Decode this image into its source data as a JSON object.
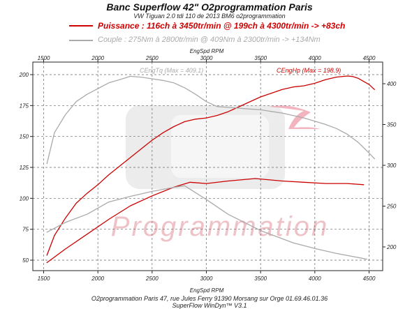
{
  "title": "Banc Superflow 42\" O2programmation Paris",
  "subtitle": "VW Tiguan 2.0 tdi 110 de 2013 BM6 o2programmation",
  "legend": {
    "power": "Puissance : 116ch à 3450tr/min @ 199ch à 4300tr/min  -> +83ch",
    "torque": "Couple : 275Nm à 2800tr/min @ 409Nm à 2300tr/min -> +134Nm"
  },
  "footer": {
    "line1": "O2programmation Paris 47, rue Jules Ferry 91390 Morsang sur Orge 01.69.46.01.36",
    "line2": "SuperFlow WinDyn™ V3.1"
  },
  "watermark": "Programmation",
  "colors": {
    "power": "#cc0000",
    "torque": "#aaaaaa",
    "grid": "#666666"
  },
  "chart_data": {
    "type": "line",
    "xlabel": "EngSpd RPM",
    "xlim": [
      1450,
      4650
    ],
    "ylim_left": [
      40,
      205
    ],
    "ylim_right": [
      180,
      420
    ],
    "x_ticks": [
      1500,
      2000,
      2500,
      3000,
      3500,
      4000,
      4500
    ],
    "y_left_ticks": [
      50,
      75,
      100,
      125,
      150,
      175,
      200
    ],
    "y_right_ticks": [
      200,
      250,
      300,
      350,
      400
    ],
    "grid": true,
    "annotations": {
      "power_max": "CEngHp (Max = 198.9)",
      "torque_max": "CEngTq (Max = 409.1)"
    },
    "series": [
      {
        "name": "Puissance",
        "axis": "left",
        "color": "#cc0000",
        "x": [
          1530,
          1600,
          1700,
          1800,
          1900,
          2000,
          2100,
          2200,
          2300,
          2400,
          2500,
          2600,
          2700,
          2800,
          2900,
          3000,
          3100,
          3200,
          3300,
          3400,
          3500,
          3600,
          3700,
          3800,
          3900,
          4000,
          4100,
          4200,
          4300,
          4350,
          4400,
          4500,
          4550
        ],
        "y": [
          54,
          70,
          84,
          96,
          104,
          111,
          119,
          126,
          133,
          140,
          147,
          153,
          158,
          162,
          164,
          165,
          167,
          170,
          174,
          178,
          182,
          185,
          188,
          190,
          191,
          193,
          196,
          198,
          198.9,
          198.5,
          197,
          192,
          188
        ]
      },
      {
        "name": "Couple",
        "axis": "right",
        "color": "#aaaaaa",
        "x": [
          1530,
          1600,
          1700,
          1800,
          1900,
          2000,
          2100,
          2200,
          2300,
          2400,
          2500,
          2600,
          2700,
          2800,
          2900,
          3000,
          3100,
          3200,
          3300,
          3400,
          3500,
          3600,
          3700,
          3800,
          3900,
          4000,
          4100,
          4200,
          4300,
          4400,
          4500,
          4550
        ],
        "y": [
          302,
          340,
          362,
          378,
          387,
          394,
          401,
          405,
          409.1,
          408,
          406,
          404,
          401,
          395,
          387,
          378,
          372,
          371,
          370,
          369,
          368,
          366,
          364,
          361,
          358,
          354,
          350,
          345,
          338,
          328,
          315,
          308
        ]
      },
      {
        "name": "Puissance (origine)",
        "axis": "left",
        "color": "#cc0000",
        "x": [
          1530,
          1700,
          1900,
          2100,
          2300,
          2500,
          2700,
          2850,
          3000,
          3200,
          3450,
          3700,
          3900,
          4100,
          4300,
          4450
        ],
        "y": [
          48,
          59,
          71,
          83,
          94,
          102,
          109,
          113,
          112,
          114,
          116,
          114,
          113,
          112,
          112,
          111
        ]
      },
      {
        "name": "Couple (origine)",
        "axis": "right",
        "color": "#aaaaaa",
        "x": [
          1530,
          1700,
          1900,
          2100,
          2300,
          2500,
          2700,
          2800,
          3000,
          3200,
          3500,
          3800,
          4000,
          4200,
          4400,
          4480
        ],
        "y": [
          218,
          230,
          240,
          255,
          262,
          268,
          273,
          275,
          258,
          240,
          220,
          205,
          198,
          192,
          187,
          185
        ]
      }
    ]
  }
}
